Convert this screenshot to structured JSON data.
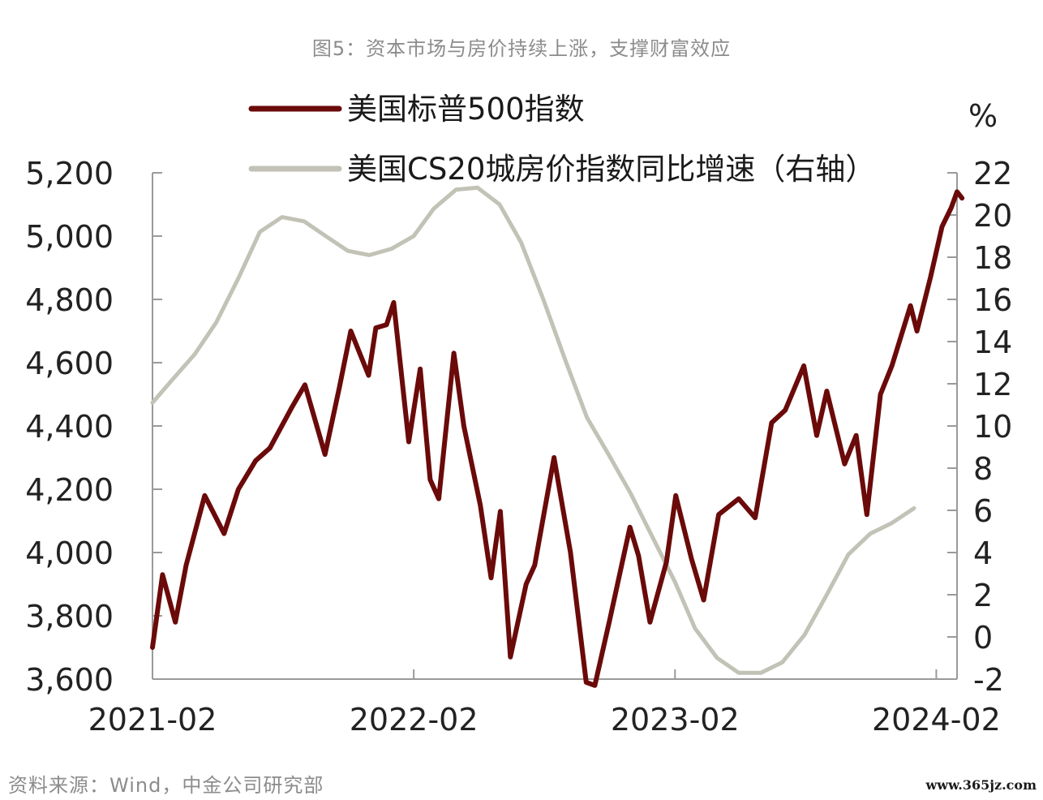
{
  "title": "图5：资本市场与房价持续上涨，支撑财富效应",
  "source": "资料来源：Wind，中金公司研究部",
  "watermark": "www.365jz.com",
  "chart_data": {
    "type": "line",
    "x_ticks": [
      "2021-02",
      "2022-02",
      "2023-02",
      "2024-02"
    ],
    "x_range": [
      "2021-02",
      "2024-03"
    ],
    "left_axis": {
      "label": "",
      "ticks": [
        "3,600",
        "3,800",
        "4,000",
        "4,200",
        "4,400",
        "4,600",
        "4,800",
        "5,000",
        "5,200"
      ],
      "ylim": [
        3600,
        5200
      ]
    },
    "right_axis": {
      "label": "%",
      "ticks": [
        "-2",
        "0",
        "2",
        "4",
        "6",
        "8",
        "10",
        "12",
        "14",
        "16",
        "18",
        "20",
        "22"
      ],
      "ylim": [
        -2,
        22
      ]
    },
    "grid": false,
    "legend_placement": "top",
    "series": [
      {
        "name": "美国标普500指数",
        "axis": "left",
        "color": "#6b0a0a",
        "points": [
          [
            "2021-02-01",
            3700
          ],
          [
            "2021-02-15",
            3930
          ],
          [
            "2021-03-05",
            3780
          ],
          [
            "2021-03-20",
            3960
          ],
          [
            "2021-04-15",
            4180
          ],
          [
            "2021-05-12",
            4060
          ],
          [
            "2021-06-01",
            4200
          ],
          [
            "2021-06-25",
            4290
          ],
          [
            "2021-07-15",
            4330
          ],
          [
            "2021-08-15",
            4460
          ],
          [
            "2021-09-02",
            4530
          ],
          [
            "2021-09-30",
            4310
          ],
          [
            "2021-10-20",
            4520
          ],
          [
            "2021-11-05",
            4700
          ],
          [
            "2021-11-30",
            4560
          ],
          [
            "2021-12-10",
            4710
          ],
          [
            "2021-12-25",
            4720
          ],
          [
            "2022-01-04",
            4790
          ],
          [
            "2022-01-25",
            4350
          ],
          [
            "2022-02-10",
            4580
          ],
          [
            "2022-02-24",
            4230
          ],
          [
            "2022-03-08",
            4170
          ],
          [
            "2022-03-29",
            4630
          ],
          [
            "2022-04-12",
            4400
          ],
          [
            "2022-05-05",
            4150
          ],
          [
            "2022-05-20",
            3920
          ],
          [
            "2022-06-02",
            4130
          ],
          [
            "2022-06-16",
            3670
          ],
          [
            "2022-07-08",
            3900
          ],
          [
            "2022-07-20",
            3960
          ],
          [
            "2022-08-16",
            4300
          ],
          [
            "2022-09-08",
            4000
          ],
          [
            "2022-09-30",
            3590
          ],
          [
            "2022-10-12",
            3580
          ],
          [
            "2022-11-02",
            3790
          ],
          [
            "2022-11-30",
            4080
          ],
          [
            "2022-12-12",
            3990
          ],
          [
            "2022-12-28",
            3780
          ],
          [
            "2023-01-20",
            3970
          ],
          [
            "2023-02-02",
            4180
          ],
          [
            "2023-02-24",
            3980
          ],
          [
            "2023-03-13",
            3850
          ],
          [
            "2023-04-03",
            4120
          ],
          [
            "2023-05-01",
            4170
          ],
          [
            "2023-05-24",
            4110
          ],
          [
            "2023-06-16",
            4410
          ],
          [
            "2023-07-05",
            4450
          ],
          [
            "2023-07-31",
            4590
          ],
          [
            "2023-08-18",
            4370
          ],
          [
            "2023-09-01",
            4510
          ],
          [
            "2023-09-26",
            4280
          ],
          [
            "2023-10-12",
            4370
          ],
          [
            "2023-10-27",
            4120
          ],
          [
            "2023-11-15",
            4500
          ],
          [
            "2023-12-01",
            4590
          ],
          [
            "2023-12-27",
            4780
          ],
          [
            "2024-01-05",
            4700
          ],
          [
            "2024-01-24",
            4870
          ],
          [
            "2024-02-09",
            5030
          ],
          [
            "2024-02-22",
            5090
          ],
          [
            "2024-03-01",
            5140
          ],
          [
            "2024-03-08",
            5120
          ]
        ]
      },
      {
        "name": "美国CS20城房价指数同比增速（右轴）",
        "axis": "right",
        "color": "#c2c2b6",
        "points": [
          [
            "2021-02-01",
            11.1
          ],
          [
            "2021-03-01",
            12.2
          ],
          [
            "2021-04-01",
            13.4
          ],
          [
            "2021-05-01",
            14.9
          ],
          [
            "2021-06-01",
            17.0
          ],
          [
            "2021-07-01",
            19.2
          ],
          [
            "2021-08-01",
            19.9
          ],
          [
            "2021-09-01",
            19.7
          ],
          [
            "2021-10-01",
            19.0
          ],
          [
            "2021-11-01",
            18.3
          ],
          [
            "2021-12-01",
            18.1
          ],
          [
            "2022-01-01",
            18.4
          ],
          [
            "2022-02-01",
            19.0
          ],
          [
            "2022-03-01",
            20.3
          ],
          [
            "2022-04-01",
            21.2
          ],
          [
            "2022-05-01",
            21.3
          ],
          [
            "2022-06-01",
            20.5
          ],
          [
            "2022-07-01",
            18.7
          ],
          [
            "2022-08-01",
            16.0
          ],
          [
            "2022-09-01",
            13.1
          ],
          [
            "2022-10-01",
            10.4
          ],
          [
            "2022-11-01",
            8.6
          ],
          [
            "2022-12-01",
            6.8
          ],
          [
            "2023-01-01",
            4.7
          ],
          [
            "2023-02-01",
            2.6
          ],
          [
            "2023-03-01",
            0.4
          ],
          [
            "2023-04-01",
            -1.0
          ],
          [
            "2023-05-01",
            -1.7
          ],
          [
            "2023-06-01",
            -1.7
          ],
          [
            "2023-07-01",
            -1.2
          ],
          [
            "2023-08-01",
            0.1
          ],
          [
            "2023-09-01",
            2.0
          ],
          [
            "2023-10-01",
            3.9
          ],
          [
            "2023-11-01",
            4.9
          ],
          [
            "2023-12-01",
            5.4
          ],
          [
            "2024-01-01",
            6.1
          ]
        ]
      }
    ]
  }
}
